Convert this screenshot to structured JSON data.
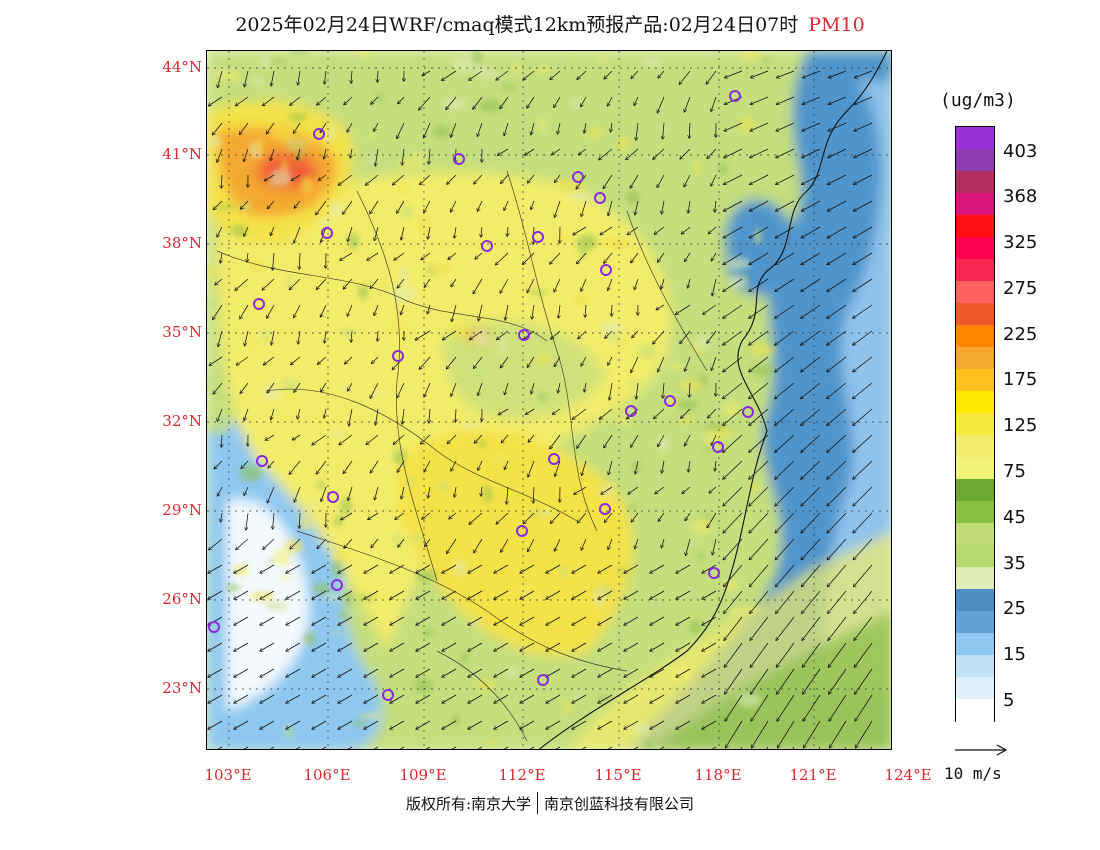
{
  "title": {
    "text": "2025年02月24日WRF/cmaq模式12km预报产品:02月24日07时",
    "variable": "PM10"
  },
  "map": {
    "lat_labels": [
      "44°N",
      "41°N",
      "38°N",
      "35°N",
      "32°N",
      "29°N",
      "26°N",
      "23°N"
    ],
    "lon_labels": [
      "103°E",
      "106°E",
      "109°E",
      "112°E",
      "115°E",
      "118°E",
      "121°E",
      "124°E"
    ],
    "colors": {
      "sea": "#4f95cc",
      "sea_light": "#8fc3ec",
      "land_green": "#c5de7e",
      "land_yellow": "#f2ec6b",
      "land_yellow_deep": "#f4e24a",
      "high_orange": "#f5a830",
      "high_red": "#ef4a3a",
      "station_ring": "#8a2be2"
    }
  },
  "legend": {
    "unit": "(ug/m3)",
    "labels": [
      "403",
      "368",
      "325",
      "275",
      "225",
      "175",
      "125",
      "75",
      "45",
      "35",
      "25",
      "15",
      "5"
    ],
    "colors": [
      "#9b2fd8",
      "#8c3cb0",
      "#b32c60",
      "#d8147a",
      "#ff1010",
      "#ff0050",
      "#f42850",
      "#ff6060",
      "#f05828",
      "#ff8800",
      "#f5a830",
      "#ffc020",
      "#ffe800",
      "#f8e840",
      "#f2ec6b",
      "#f2f47a",
      "#6aaa30",
      "#88c040",
      "#c0dc78",
      "#b8d870",
      "#e0ecb8",
      "#4a8ec4",
      "#5fa3d8",
      "#8ec8f0",
      "#c0e2f6",
      "#dff0fa",
      "#ffffff"
    ]
  },
  "wind_reference": {
    "label": "10 m/s"
  },
  "footer": {
    "left": "版权所有:南京大学",
    "right": "南京创蓝科技有限公司"
  }
}
